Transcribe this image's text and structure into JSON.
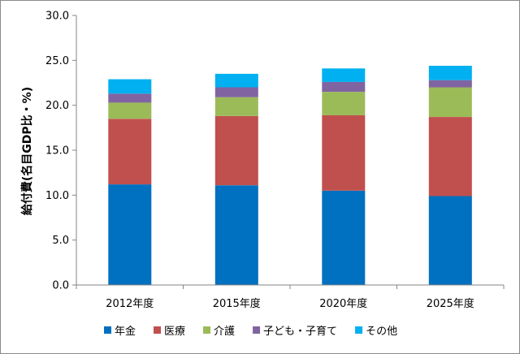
{
  "chart_data": {
    "type": "bar",
    "stacked": true,
    "categories": [
      "2012年度",
      "2015年度",
      "2020年度",
      "2025年度"
    ],
    "series": [
      {
        "name": "年金",
        "color": "#0070c0",
        "values": [
          11.2,
          11.1,
          10.5,
          9.9
        ]
      },
      {
        "name": "医療",
        "color": "#c0504d",
        "values": [
          7.3,
          7.7,
          8.4,
          8.8
        ]
      },
      {
        "name": "介護",
        "color": "#9bbb59",
        "values": [
          1.8,
          2.1,
          2.6,
          3.3
        ]
      },
      {
        "name": "子ども・子育て",
        "color": "#8064a2",
        "values": [
          1.0,
          1.1,
          1.1,
          0.8
        ]
      },
      {
        "name": "その他",
        "color": "#00b0f0",
        "values": [
          1.6,
          1.5,
          1.5,
          1.6
        ]
      }
    ],
    "yticks": [
      "0.0",
      "5.0",
      "10.0",
      "15.0",
      "20.0",
      "25.0",
      "30.0"
    ],
    "ylim": [
      0,
      30
    ],
    "ylabel": "給付費(名目GDP比・%)",
    "xlabel": "",
    "title": "",
    "grid": false,
    "legend_position": "bottom"
  }
}
